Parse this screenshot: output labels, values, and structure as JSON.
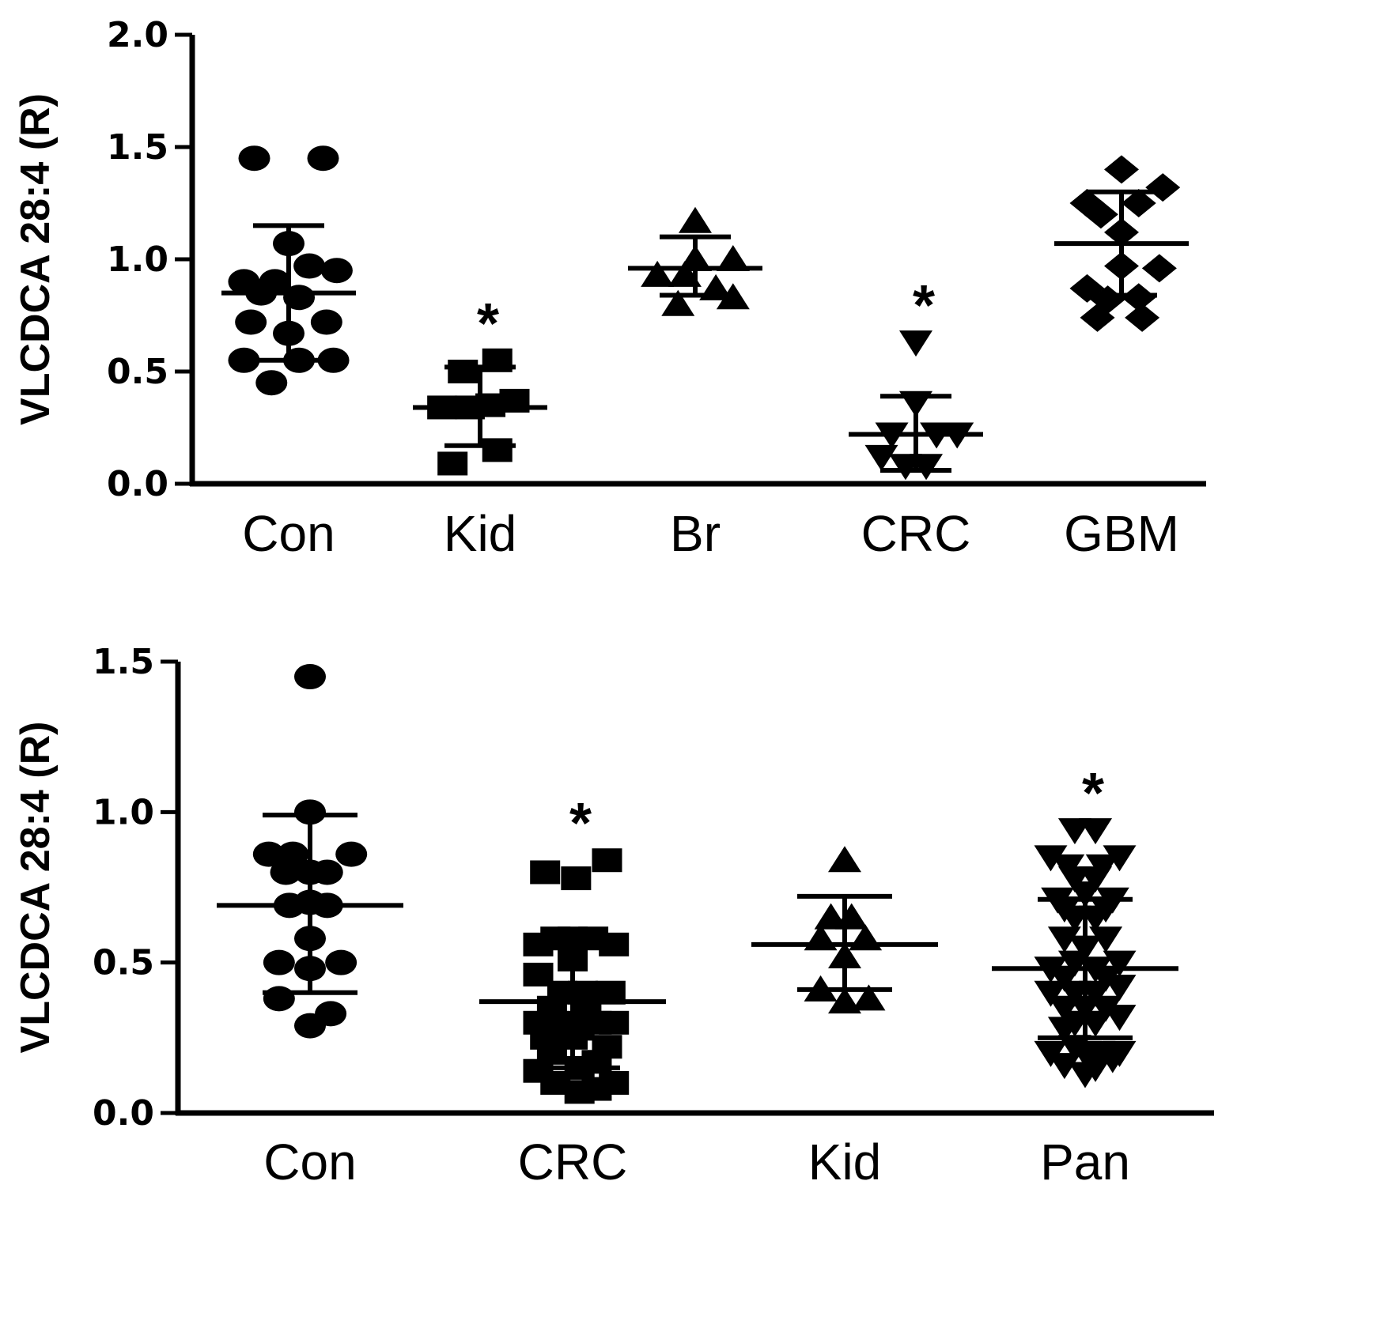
{
  "chart_data": [
    {
      "type": "scatter",
      "ylabel": "VLCDCA 28:4 (R)",
      "ylim": [
        0,
        2.0
      ],
      "yticks": [
        "0.0",
        "0.5",
        "1.0",
        "1.5",
        "2.0"
      ],
      "categories": [
        "Con",
        "Kid",
        "Br",
        "CRC",
        "GBM"
      ],
      "groups": [
        {
          "category": "Con",
          "marker": "circle",
          "mean": 0.85,
          "sd_low": 0.55,
          "sd_high": 1.15,
          "significant": false,
          "points": [
            [
              -1,
              1.45
            ],
            [
              1,
              1.45
            ],
            [
              0,
              1.07
            ],
            [
              -1.3,
              0.9
            ],
            [
              -0.4,
              0.9
            ],
            [
              0.6,
              0.97
            ],
            [
              1.4,
              0.95
            ],
            [
              -0.8,
              0.85
            ],
            [
              0.3,
              0.83
            ],
            [
              -1.1,
              0.72
            ],
            [
              0,
              0.67
            ],
            [
              1.1,
              0.72
            ],
            [
              -1.3,
              0.55
            ],
            [
              0.3,
              0.55
            ],
            [
              1.3,
              0.55
            ],
            [
              -0.5,
              0.45
            ]
          ]
        },
        {
          "category": "Kid",
          "marker": "square",
          "mean": 0.34,
          "sd_low": 0.17,
          "sd_high": 0.52,
          "significant": true,
          "star": "*",
          "points": [
            [
              -0.5,
              0.5
            ],
            [
              0.5,
              0.55
            ],
            [
              -1.1,
              0.34
            ],
            [
              -0.3,
              0.34
            ],
            [
              0.3,
              0.35
            ],
            [
              1,
              0.37
            ],
            [
              0.5,
              0.15
            ],
            [
              -0.8,
              0.09
            ]
          ]
        },
        {
          "category": "Br",
          "marker": "triangle-up",
          "mean": 0.96,
          "sd_low": 0.84,
          "sd_high": 1.1,
          "significant": false,
          "points": [
            [
              0,
              1.17
            ],
            [
              0,
              1.0
            ],
            [
              1.1,
              1.0
            ],
            [
              -1.1,
              0.93
            ],
            [
              -0.3,
              0.93
            ],
            [
              0.6,
              0.87
            ],
            [
              1.1,
              0.83
            ],
            [
              -0.5,
              0.8
            ]
          ]
        },
        {
          "category": "CRC",
          "marker": "triangle-down",
          "mean": 0.22,
          "sd_low": 0.06,
          "sd_high": 0.39,
          "significant": true,
          "star": "*",
          "points": [
            [
              0,
              0.63
            ],
            [
              0,
              0.36
            ],
            [
              -0.7,
              0.22
            ],
            [
              0.6,
              0.22
            ],
            [
              1.2,
              0.22
            ],
            [
              -1,
              0.12
            ],
            [
              -0.3,
              0.08
            ],
            [
              0.3,
              0.08
            ]
          ]
        },
        {
          "category": "GBM",
          "marker": "diamond",
          "mean": 1.07,
          "sd_low": 0.84,
          "sd_high": 1.3,
          "significant": false,
          "points": [
            [
              0,
              1.4
            ],
            [
              -1,
              1.25
            ],
            [
              0.5,
              1.25
            ],
            [
              1.2,
              1.32
            ],
            [
              -0.6,
              1.2
            ],
            [
              0,
              1.12
            ],
            [
              1.1,
              0.96
            ],
            [
              0,
              0.97
            ],
            [
              -1,
              0.87
            ],
            [
              -0.4,
              0.82
            ],
            [
              0.5,
              0.83
            ],
            [
              -0.7,
              0.74
            ],
            [
              0.6,
              0.74
            ]
          ]
        }
      ]
    },
    {
      "type": "scatter",
      "ylabel": "VLCDCA 28:4 (R)",
      "ylim": [
        0,
        1.5
      ],
      "yticks": [
        "0.0",
        "0.5",
        "1.0",
        "1.5"
      ],
      "categories": [
        "Con",
        "CRC",
        "Kid",
        "Pan"
      ],
      "groups": [
        {
          "category": "Con",
          "marker": "circle",
          "mean": 0.69,
          "sd_low": 0.4,
          "sd_high": 0.99,
          "significant": false,
          "points": [
            [
              0,
              1.45
            ],
            [
              0,
              1.0
            ],
            [
              -1.2,
              0.86
            ],
            [
              -0.5,
              0.86
            ],
            [
              0.5,
              0.8
            ],
            [
              1.2,
              0.86
            ],
            [
              -0.7,
              0.8
            ],
            [
              0,
              0.8
            ],
            [
              -0.6,
              0.69
            ],
            [
              0,
              0.7
            ],
            [
              0.5,
              0.69
            ],
            [
              0,
              0.58
            ],
            [
              -0.9,
              0.5
            ],
            [
              0,
              0.48
            ],
            [
              0.9,
              0.5
            ],
            [
              -0.9,
              0.38
            ],
            [
              0.6,
              0.33
            ],
            [
              0,
              0.29
            ]
          ]
        },
        {
          "category": "CRC",
          "marker": "square",
          "mean": 0.37,
          "sd_low": 0.15,
          "sd_high": 0.59,
          "significant": true,
          "star": "*",
          "points": [
            [
              -0.8,
              0.8
            ],
            [
              0.1,
              0.78
            ],
            [
              1,
              0.84
            ],
            [
              -1,
              0.56
            ],
            [
              -0.5,
              0.58
            ],
            [
              0,
              0.58
            ],
            [
              0.6,
              0.58
            ],
            [
              1.2,
              0.56
            ],
            [
              0,
              0.51
            ],
            [
              -1,
              0.46
            ],
            [
              -0.3,
              0.4
            ],
            [
              0.3,
              0.4
            ],
            [
              1.1,
              0.4
            ],
            [
              -0.6,
              0.35
            ],
            [
              0.4,
              0.35
            ],
            [
              -1,
              0.3
            ],
            [
              -0.3,
              0.3
            ],
            [
              0.2,
              0.28
            ],
            [
              0.7,
              0.3
            ],
            [
              1.2,
              0.3
            ],
            [
              -0.8,
              0.25
            ],
            [
              0,
              0.25
            ],
            [
              1,
              0.22
            ],
            [
              -0.6,
              0.2
            ],
            [
              0.2,
              0.15
            ],
            [
              0.7,
              0.17
            ],
            [
              -1,
              0.14
            ],
            [
              -0.5,
              0.1
            ],
            [
              0.2,
              0.07
            ],
            [
              0.7,
              0.08
            ],
            [
              1.2,
              0.1
            ]
          ]
        },
        {
          "category": "Kid",
          "marker": "triangle-up",
          "mean": 0.56,
          "sd_low": 0.41,
          "sd_high": 0.72,
          "significant": false,
          "points": [
            [
              0,
              0.84
            ],
            [
              -0.4,
              0.65
            ],
            [
              0.2,
              0.65
            ],
            [
              -0.7,
              0.58
            ],
            [
              0.6,
              0.58
            ],
            [
              0,
              0.52
            ],
            [
              -0.7,
              0.41
            ],
            [
              0,
              0.37
            ],
            [
              0.7,
              0.38
            ]
          ]
        },
        {
          "category": "Pan",
          "marker": "triangle-down",
          "mean": 0.48,
          "sd_low": 0.25,
          "sd_high": 0.71,
          "significant": true,
          "star": "*",
          "points": [
            [
              -0.3,
              0.94
            ],
            [
              0.3,
              0.94
            ],
            [
              -1,
              0.85
            ],
            [
              -0.5,
              0.82
            ],
            [
              0.5,
              0.82
            ],
            [
              1,
              0.85
            ],
            [
              -0.3,
              0.78
            ],
            [
              0.3,
              0.78
            ],
            [
              -0.8,
              0.71
            ],
            [
              0,
              0.73
            ],
            [
              0.8,
              0.71
            ],
            [
              -0.6,
              0.68
            ],
            [
              0.6,
              0.68
            ],
            [
              -0.3,
              0.65
            ],
            [
              0.3,
              0.65
            ],
            [
              -0.6,
              0.58
            ],
            [
              0.6,
              0.58
            ],
            [
              0,
              0.55
            ],
            [
              -0.3,
              0.5
            ],
            [
              -1,
              0.48
            ],
            [
              0.3,
              0.48
            ],
            [
              1,
              0.5
            ],
            [
              -0.6,
              0.45
            ],
            [
              0.6,
              0.45
            ],
            [
              -1,
              0.4
            ],
            [
              -0.3,
              0.4
            ],
            [
              0.3,
              0.4
            ],
            [
              1,
              0.42
            ],
            [
              -0.6,
              0.35
            ],
            [
              0,
              0.35
            ],
            [
              0.6,
              0.35
            ],
            [
              -0.3,
              0.3
            ],
            [
              0.3,
              0.3
            ],
            [
              1,
              0.32
            ],
            [
              -0.6,
              0.28
            ],
            [
              -1,
              0.2
            ],
            [
              -0.3,
              0.22
            ],
            [
              0,
              0.2
            ],
            [
              0.4,
              0.2
            ],
            [
              1,
              0.2
            ],
            [
              -0.6,
              0.16
            ],
            [
              0.3,
              0.15
            ],
            [
              0.8,
              0.18
            ],
            [
              0,
              0.13
            ]
          ]
        }
      ]
    }
  ]
}
